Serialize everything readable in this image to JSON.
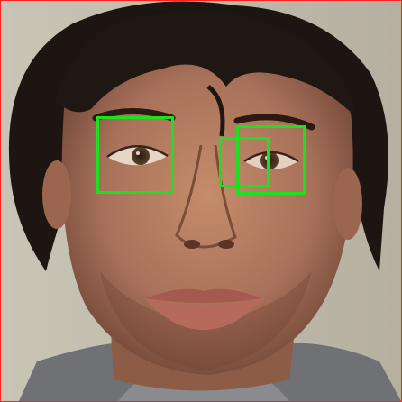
{
  "image": {
    "subject": "frontal-face-portrait",
    "colors": {
      "frame_border": "#ff2020",
      "detection_box": "#1fe01f",
      "background": "#bcb7a8",
      "hair": "#1a1410",
      "skin": "#b07a5e"
    },
    "detections": [
      {
        "label": "eye"
      },
      {
        "label": "eye"
      },
      {
        "label": "eye"
      }
    ]
  }
}
